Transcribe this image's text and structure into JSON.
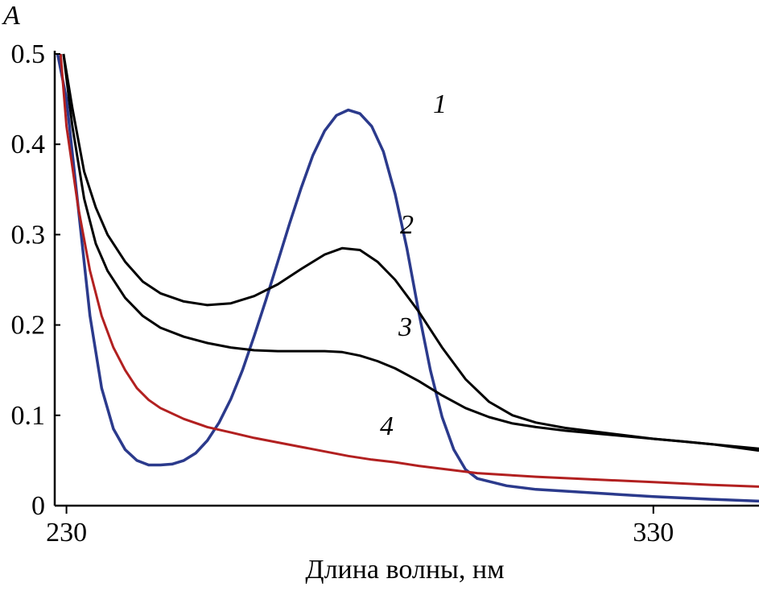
{
  "chart_data": {
    "type": "line",
    "xlabel": "Длина волны, нм",
    "ylabel": "A",
    "xlim": [
      228,
      348
    ],
    "ylim": [
      0,
      0.5
    ],
    "x_ticks": [
      "230",
      "330"
    ],
    "y_ticks": [
      "0",
      "0.1",
      "0.2",
      "0.3",
      "0.4",
      "0.5"
    ],
    "grid": false,
    "series": [
      {
        "name": "1",
        "color": "#2b3a8c",
        "points": [
          [
            228.5,
            0.5
          ],
          [
            230,
            0.45
          ],
          [
            232,
            0.33
          ],
          [
            234,
            0.21
          ],
          [
            236,
            0.13
          ],
          [
            238,
            0.085
          ],
          [
            240,
            0.062
          ],
          [
            242,
            0.05
          ],
          [
            244,
            0.045
          ],
          [
            246,
            0.045
          ],
          [
            248,
            0.046
          ],
          [
            250,
            0.05
          ],
          [
            252,
            0.058
          ],
          [
            254,
            0.072
          ],
          [
            256,
            0.092
          ],
          [
            258,
            0.118
          ],
          [
            260,
            0.15
          ],
          [
            262,
            0.188
          ],
          [
            264,
            0.228
          ],
          [
            266,
            0.27
          ],
          [
            268,
            0.312
          ],
          [
            270,
            0.352
          ],
          [
            272,
            0.388
          ],
          [
            274,
            0.415
          ],
          [
            276,
            0.432
          ],
          [
            278,
            0.438
          ],
          [
            280,
            0.434
          ],
          [
            282,
            0.42
          ],
          [
            284,
            0.392
          ],
          [
            286,
            0.345
          ],
          [
            288,
            0.285
          ],
          [
            290,
            0.215
          ],
          [
            292,
            0.15
          ],
          [
            294,
            0.098
          ],
          [
            296,
            0.062
          ],
          [
            298,
            0.04
          ],
          [
            300,
            0.03
          ],
          [
            305,
            0.022
          ],
          [
            310,
            0.018
          ],
          [
            320,
            0.014
          ],
          [
            330,
            0.01
          ],
          [
            340,
            0.007
          ],
          [
            348,
            0.005
          ]
        ]
      },
      {
        "name": "2",
        "color": "#000000",
        "points": [
          [
            229.5,
            0.5
          ],
          [
            231,
            0.44
          ],
          [
            233,
            0.37
          ],
          [
            235,
            0.33
          ],
          [
            237,
            0.3
          ],
          [
            240,
            0.27
          ],
          [
            243,
            0.248
          ],
          [
            246,
            0.235
          ],
          [
            250,
            0.226
          ],
          [
            254,
            0.222
          ],
          [
            258,
            0.224
          ],
          [
            262,
            0.232
          ],
          [
            266,
            0.245
          ],
          [
            270,
            0.262
          ],
          [
            274,
            0.278
          ],
          [
            277,
            0.285
          ],
          [
            280,
            0.283
          ],
          [
            283,
            0.27
          ],
          [
            286,
            0.25
          ],
          [
            290,
            0.215
          ],
          [
            294,
            0.175
          ],
          [
            298,
            0.14
          ],
          [
            302,
            0.115
          ],
          [
            306,
            0.1
          ],
          [
            310,
            0.092
          ],
          [
            315,
            0.086
          ],
          [
            320,
            0.082
          ],
          [
            325,
            0.078
          ],
          [
            330,
            0.074
          ],
          [
            335,
            0.071
          ],
          [
            340,
            0.068
          ],
          [
            348,
            0.063
          ]
        ]
      },
      {
        "name": "3",
        "color": "#000000",
        "points": [
          [
            229.5,
            0.5
          ],
          [
            231,
            0.42
          ],
          [
            233,
            0.34
          ],
          [
            235,
            0.29
          ],
          [
            237,
            0.26
          ],
          [
            240,
            0.23
          ],
          [
            243,
            0.21
          ],
          [
            246,
            0.197
          ],
          [
            250,
            0.187
          ],
          [
            254,
            0.18
          ],
          [
            258,
            0.175
          ],
          [
            262,
            0.172
          ],
          [
            266,
            0.171
          ],
          [
            270,
            0.171
          ],
          [
            274,
            0.171
          ],
          [
            277,
            0.17
          ],
          [
            280,
            0.166
          ],
          [
            283,
            0.16
          ],
          [
            286,
            0.152
          ],
          [
            290,
            0.138
          ],
          [
            294,
            0.122
          ],
          [
            298,
            0.108
          ],
          [
            302,
            0.098
          ],
          [
            306,
            0.091
          ],
          [
            310,
            0.087
          ],
          [
            315,
            0.083
          ],
          [
            320,
            0.08
          ],
          [
            325,
            0.077
          ],
          [
            330,
            0.074
          ],
          [
            335,
            0.071
          ],
          [
            340,
            0.068
          ],
          [
            348,
            0.061
          ]
        ]
      },
      {
        "name": "4",
        "color": "#b22020",
        "points": [
          [
            229,
            0.5
          ],
          [
            230,
            0.42
          ],
          [
            232,
            0.33
          ],
          [
            234,
            0.26
          ],
          [
            236,
            0.21
          ],
          [
            238,
            0.175
          ],
          [
            240,
            0.15
          ],
          [
            242,
            0.13
          ],
          [
            244,
            0.117
          ],
          [
            246,
            0.108
          ],
          [
            250,
            0.096
          ],
          [
            254,
            0.087
          ],
          [
            258,
            0.081
          ],
          [
            262,
            0.075
          ],
          [
            266,
            0.07
          ],
          [
            270,
            0.065
          ],
          [
            274,
            0.06
          ],
          [
            278,
            0.055
          ],
          [
            282,
            0.051
          ],
          [
            286,
            0.048
          ],
          [
            290,
            0.044
          ],
          [
            295,
            0.04
          ],
          [
            300,
            0.036
          ],
          [
            305,
            0.034
          ],
          [
            310,
            0.032
          ],
          [
            320,
            0.029
          ],
          [
            330,
            0.026
          ],
          [
            340,
            0.023
          ],
          [
            348,
            0.021
          ]
        ]
      }
    ]
  }
}
